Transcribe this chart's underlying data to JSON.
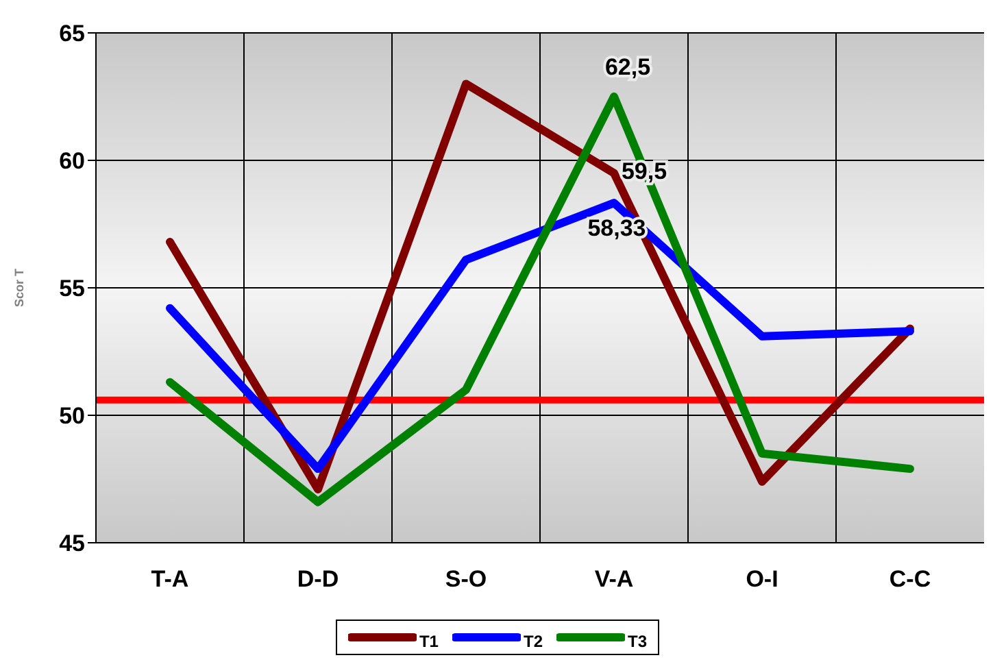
{
  "chart_data": {
    "type": "line",
    "ylabel": "Scor T",
    "categories": [
      "T-A",
      "D-D",
      "S-O",
      "V-A",
      "O-I",
      "C-C"
    ],
    "series": [
      {
        "name": "T1",
        "color": "#800000",
        "values": [
          56.8,
          47.1,
          63.0,
          59.5,
          47.4,
          53.4
        ],
        "value_labels": [
          null,
          null,
          null,
          "59,5",
          null,
          null
        ]
      },
      {
        "name": "T2",
        "color": "#0000ff",
        "values": [
          54.2,
          47.9,
          56.1,
          58.33,
          53.1,
          53.3
        ],
        "value_labels": [
          null,
          null,
          null,
          "58,33",
          null,
          null
        ]
      },
      {
        "name": "T3",
        "color": "#008000",
        "values": [
          51.3,
          46.6,
          51.0,
          62.5,
          48.5,
          47.9
        ],
        "value_labels": [
          null,
          null,
          null,
          "62,5",
          null,
          null
        ]
      }
    ],
    "ylim": [
      45,
      65
    ],
    "yticks": [
      45,
      50,
      55,
      60,
      65
    ],
    "grid": true,
    "legend": "bottom",
    "marker": "none",
    "line_style": "solid",
    "ref_lines": [
      {
        "axis": "y",
        "value": 50.6,
        "color": "#ff0000"
      }
    ]
  }
}
